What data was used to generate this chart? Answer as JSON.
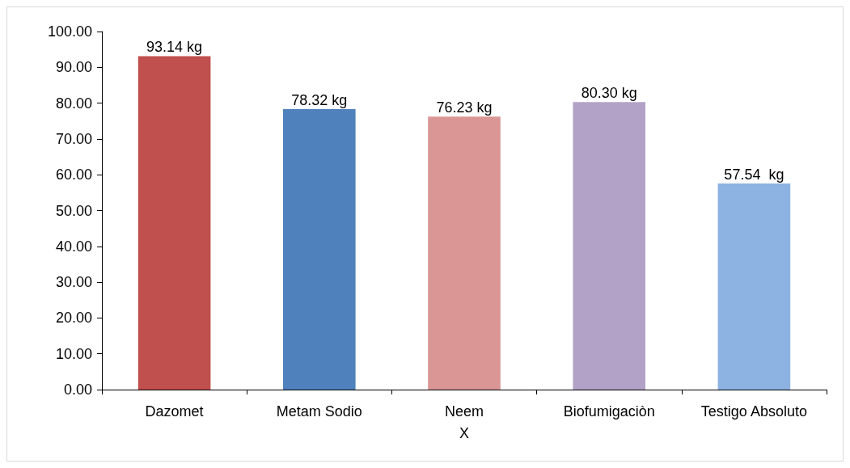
{
  "chart_data": {
    "type": "bar",
    "xlabel": "X",
    "categories": [
      "Dazomet",
      "Metam Sodio",
      "Neem",
      "Biofumigaciòn",
      "Testigo Absoluto"
    ],
    "values": [
      93.14,
      78.32,
      76.23,
      80.3,
      57.54
    ],
    "colors": [
      "#c0504d",
      "#4f81bd",
      "#d99694",
      "#b3a2c7",
      "#8db3e2"
    ],
    "value_labels": [
      "93.14 kg",
      "78.32 kg",
      "76.23 kg",
      "80.30 kg",
      "57.54  kg"
    ],
    "ylim": [
      0,
      100
    ],
    "yticks": [
      {
        "value": 0,
        "label": "0.00"
      },
      {
        "value": 10,
        "label": "10.00"
      },
      {
        "value": 20,
        "label": "20.00"
      },
      {
        "value": 30,
        "label": "30.00"
      },
      {
        "value": 40,
        "label": "40.00"
      },
      {
        "value": 50,
        "label": "50.00"
      },
      {
        "value": 60,
        "label": "60.00"
      },
      {
        "value": 70,
        "label": "70.00"
      },
      {
        "value": 80,
        "label": "80.00"
      },
      {
        "value": 90,
        "label": "90.00"
      },
      {
        "value": 100,
        "label": "100.00"
      }
    ],
    "grid": false
  }
}
